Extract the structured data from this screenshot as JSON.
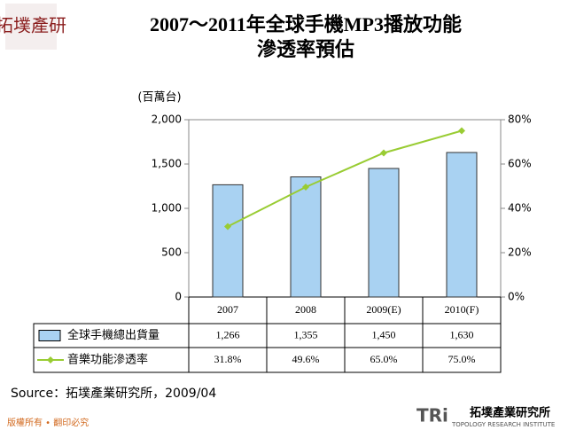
{
  "logo": "拓墣產研",
  "source": "Source：拓墣產業研究所，2009/04",
  "copyright": "版權所有 • 翻印必究",
  "brand": {
    "mark": "TRi",
    "name": "拓墣產業研究所",
    "english": "TOPOLOGY RESEARCH INSTITUTE"
  },
  "chart_data": {
    "type": "bar-line",
    "title": [
      "2007～2011年全球手機MP3播放功能",
      "滲透率預估"
    ],
    "y_label": "(百萬台)",
    "categories": [
      "2007",
      "2008",
      "2009(E)",
      "2010(F)"
    ],
    "series": [
      {
        "name": "全球手機總出貨量",
        "type": "bar",
        "color": "#a9d2f2",
        "values": [
          1266,
          1355,
          1450,
          1630
        ],
        "value_labels": [
          "1,266",
          "1,355",
          "1,450",
          "1,630"
        ]
      },
      {
        "name": "音樂功能滲透率",
        "type": "line",
        "axis": "y2",
        "color": "#99cc33",
        "values": [
          31.8,
          49.6,
          65.0,
          75.0
        ],
        "value_labels": [
          "31.8%",
          "49.6%",
          "65.0%",
          "75.0%"
        ]
      }
    ],
    "ylim": [
      0,
      2000
    ],
    "yticks": [
      0,
      500,
      {
        "value": 1000,
        "label": "1,000"
      },
      {
        "value": 1500,
        "label": "1,500"
      },
      {
        "value": 2000,
        "label": "2,000"
      }
    ],
    "y2lim": [
      0,
      80
    ],
    "y2ticks": [
      {
        "value": 0,
        "label": "0%"
      },
      {
        "value": 20,
        "label": "20%"
      },
      {
        "value": 40,
        "label": "40%"
      },
      {
        "value": 60,
        "label": "60%"
      },
      {
        "value": 80,
        "label": "80%"
      }
    ],
    "grid": false
  }
}
